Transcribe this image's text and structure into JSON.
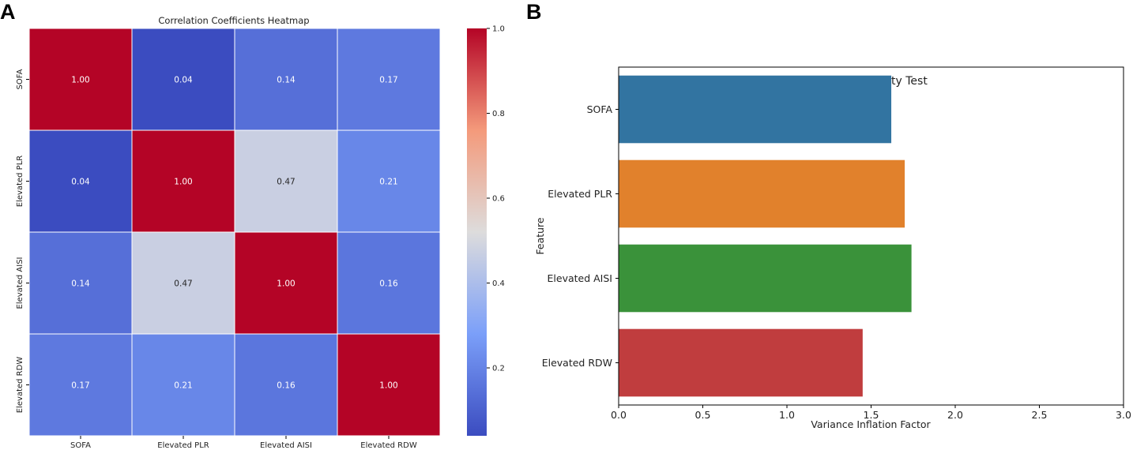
{
  "panel_labels": {
    "a": "A",
    "b": "B"
  },
  "chart_data": [
    {
      "type": "heatmap",
      "title": "Correlation Coefficients Heatmap",
      "row_labels": [
        "SOFA",
        "Elevated PLR",
        "Elevated AISI",
        "Elevated RDW"
      ],
      "col_labels": [
        "SOFA",
        "Elevated PLR",
        "Elevated AISI",
        "Elevated RDW"
      ],
      "values": [
        [
          1.0,
          0.04,
          0.14,
          0.17
        ],
        [
          0.04,
          1.0,
          0.47,
          0.21
        ],
        [
          0.14,
          0.47,
          1.0,
          0.16
        ],
        [
          0.17,
          0.21,
          0.16,
          1.0
        ]
      ],
      "cell_text": [
        [
          "1.00",
          "0.04",
          "0.14",
          "0.17"
        ],
        [
          "0.04",
          "1.00",
          "0.47",
          "0.21"
        ],
        [
          "0.14",
          "0.47",
          "1.00",
          "0.16"
        ],
        [
          "0.17",
          "0.21",
          "0.16",
          "1.00"
        ]
      ],
      "colormap": "coolwarm",
      "colorbar": {
        "min": 0.04,
        "max": 1.0,
        "ticks": [
          0.2,
          0.4,
          0.6,
          0.8,
          1.0
        ],
        "tick_labels": [
          "0.2",
          "0.4",
          "0.6",
          "0.8",
          "1.0"
        ]
      }
    },
    {
      "type": "bar",
      "orientation": "horizontal",
      "title": "Multicollinearity Test",
      "xlabel": "Variance Inflation Factor",
      "ylabel": "Feature",
      "categories": [
        "SOFA",
        "Elevated PLR",
        "Elevated AISI",
        "Elevated RDW"
      ],
      "values": [
        1.62,
        1.7,
        1.74,
        1.45
      ],
      "colors": [
        "#3274a1",
        "#e1812c",
        "#3a923a",
        "#c03d3e"
      ],
      "xlim": [
        0,
        3.0
      ],
      "xticks": [
        0,
        0.5,
        1.0,
        1.5,
        2.0,
        2.5,
        3.0
      ],
      "xtick_labels": [
        "0.0",
        "0.5",
        "1.0",
        "1.5",
        "2.0",
        "2.5",
        "3.0"
      ]
    }
  ]
}
